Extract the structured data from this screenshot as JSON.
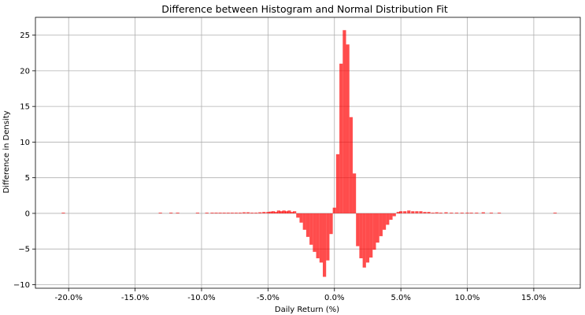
{
  "chart_data": {
    "type": "bar",
    "title": "Difference between Histogram and Normal Distribution Fit",
    "xlabel": "Daily Return (%)",
    "ylabel": "Difference in Density",
    "xlim": [
      -22.5,
      18.5
    ],
    "ylim": [
      -10.5,
      27.5
    ],
    "grid": true,
    "bar_color": "#ff0000",
    "bar_opacity": 0.7,
    "xticks": [
      {
        "value": -20,
        "label": "-20.0%"
      },
      {
        "value": -15,
        "label": "-15.0%"
      },
      {
        "value": -10,
        "label": "-10.0%"
      },
      {
        "value": -5,
        "label": "-5.0%"
      },
      {
        "value": 0,
        "label": "0.0%"
      },
      {
        "value": 5,
        "label": "5.0%"
      },
      {
        "value": 10,
        "label": "10.0%"
      },
      {
        "value": 15,
        "label": "15.0%"
      }
    ],
    "yticks": [
      {
        "value": -10,
        "label": "−10"
      },
      {
        "value": -5,
        "label": "−5"
      },
      {
        "value": 0,
        "label": "0"
      },
      {
        "value": 5,
        "label": "5"
      },
      {
        "value": 10,
        "label": "10"
      },
      {
        "value": 15,
        "label": "15"
      },
      {
        "value": 20,
        "label": "20"
      },
      {
        "value": 25,
        "label": "25"
      }
    ],
    "bin_width": 0.25,
    "bins": [
      {
        "x": -20.4,
        "y": 0.1
      },
      {
        "x": -13.1,
        "y": 0.1
      },
      {
        "x": -12.3,
        "y": 0.1
      },
      {
        "x": -11.8,
        "y": 0.1
      },
      {
        "x": -10.3,
        "y": 0.1
      },
      {
        "x": -9.6,
        "y": 0.1
      },
      {
        "x": -9.2,
        "y": 0.1
      },
      {
        "x": -8.9,
        "y": 0.1
      },
      {
        "x": -8.6,
        "y": 0.1
      },
      {
        "x": -8.3,
        "y": 0.1
      },
      {
        "x": -8.0,
        "y": 0.1
      },
      {
        "x": -7.7,
        "y": 0.1
      },
      {
        "x": -7.4,
        "y": 0.1
      },
      {
        "x": -7.1,
        "y": 0.1
      },
      {
        "x": -6.8,
        "y": 0.15
      },
      {
        "x": -6.5,
        "y": 0.15
      },
      {
        "x": -6.2,
        "y": 0.1
      },
      {
        "x": -5.9,
        "y": 0.1
      },
      {
        "x": -5.6,
        "y": 0.15
      },
      {
        "x": -5.3,
        "y": 0.2
      },
      {
        "x": -5.0,
        "y": 0.2
      },
      {
        "x": -4.8,
        "y": 0.25
      },
      {
        "x": -4.6,
        "y": 0.3
      },
      {
        "x": -4.4,
        "y": 0.2
      },
      {
        "x": -4.2,
        "y": 0.4
      },
      {
        "x": -4.0,
        "y": 0.3
      },
      {
        "x": -3.8,
        "y": 0.4
      },
      {
        "x": -3.6,
        "y": 0.3
      },
      {
        "x": -3.4,
        "y": 0.4
      },
      {
        "x": -3.2,
        "y": 0.2
      },
      {
        "x": -3.0,
        "y": 0.3
      },
      {
        "x": -2.75,
        "y": -0.6
      },
      {
        "x": -2.5,
        "y": -1.3
      },
      {
        "x": -2.25,
        "y": -2.3
      },
      {
        "x": -2.0,
        "y": -3.3
      },
      {
        "x": -1.75,
        "y": -4.4
      },
      {
        "x": -1.5,
        "y": -5.4
      },
      {
        "x": -1.25,
        "y": -6.3
      },
      {
        "x": -1.0,
        "y": -6.9
      },
      {
        "x": -0.75,
        "y": -8.9
      },
      {
        "x": -0.5,
        "y": -6.6
      },
      {
        "x": -0.25,
        "y": -2.9
      },
      {
        "x": 0.0,
        "y": 0.8
      },
      {
        "x": 0.25,
        "y": 8.3
      },
      {
        "x": 0.5,
        "y": 21.0
      },
      {
        "x": 0.75,
        "y": 25.7
      },
      {
        "x": 1.0,
        "y": 23.7
      },
      {
        "x": 1.25,
        "y": 13.5
      },
      {
        "x": 1.5,
        "y": 5.6
      },
      {
        "x": 1.75,
        "y": -4.6
      },
      {
        "x": 2.0,
        "y": -6.3
      },
      {
        "x": 2.25,
        "y": -7.6
      },
      {
        "x": 2.5,
        "y": -6.9
      },
      {
        "x": 2.75,
        "y": -6.2
      },
      {
        "x": 3.0,
        "y": -5.1
      },
      {
        "x": 3.25,
        "y": -4.1
      },
      {
        "x": 3.5,
        "y": -3.2
      },
      {
        "x": 3.75,
        "y": -2.3
      },
      {
        "x": 4.0,
        "y": -1.6
      },
      {
        "x": 4.25,
        "y": -0.9
      },
      {
        "x": 4.5,
        "y": -0.4
      },
      {
        "x": 4.8,
        "y": 0.2
      },
      {
        "x": 5.0,
        "y": 0.3
      },
      {
        "x": 5.3,
        "y": 0.3
      },
      {
        "x": 5.6,
        "y": 0.4
      },
      {
        "x": 5.9,
        "y": 0.3
      },
      {
        "x": 6.2,
        "y": 0.3
      },
      {
        "x": 6.5,
        "y": 0.3
      },
      {
        "x": 6.8,
        "y": 0.2
      },
      {
        "x": 7.1,
        "y": 0.2
      },
      {
        "x": 7.4,
        "y": 0.1
      },
      {
        "x": 7.7,
        "y": 0.15
      },
      {
        "x": 8.0,
        "y": 0.1
      },
      {
        "x": 8.4,
        "y": 0.15
      },
      {
        "x": 8.8,
        "y": 0.1
      },
      {
        "x": 9.2,
        "y": 0.1
      },
      {
        "x": 9.6,
        "y": 0.1
      },
      {
        "x": 10.0,
        "y": 0.1
      },
      {
        "x": 10.3,
        "y": 0.1
      },
      {
        "x": 10.7,
        "y": 0.1
      },
      {
        "x": 11.2,
        "y": 0.15
      },
      {
        "x": 11.8,
        "y": 0.1
      },
      {
        "x": 12.4,
        "y": 0.1
      },
      {
        "x": 16.6,
        "y": 0.1
      }
    ]
  }
}
